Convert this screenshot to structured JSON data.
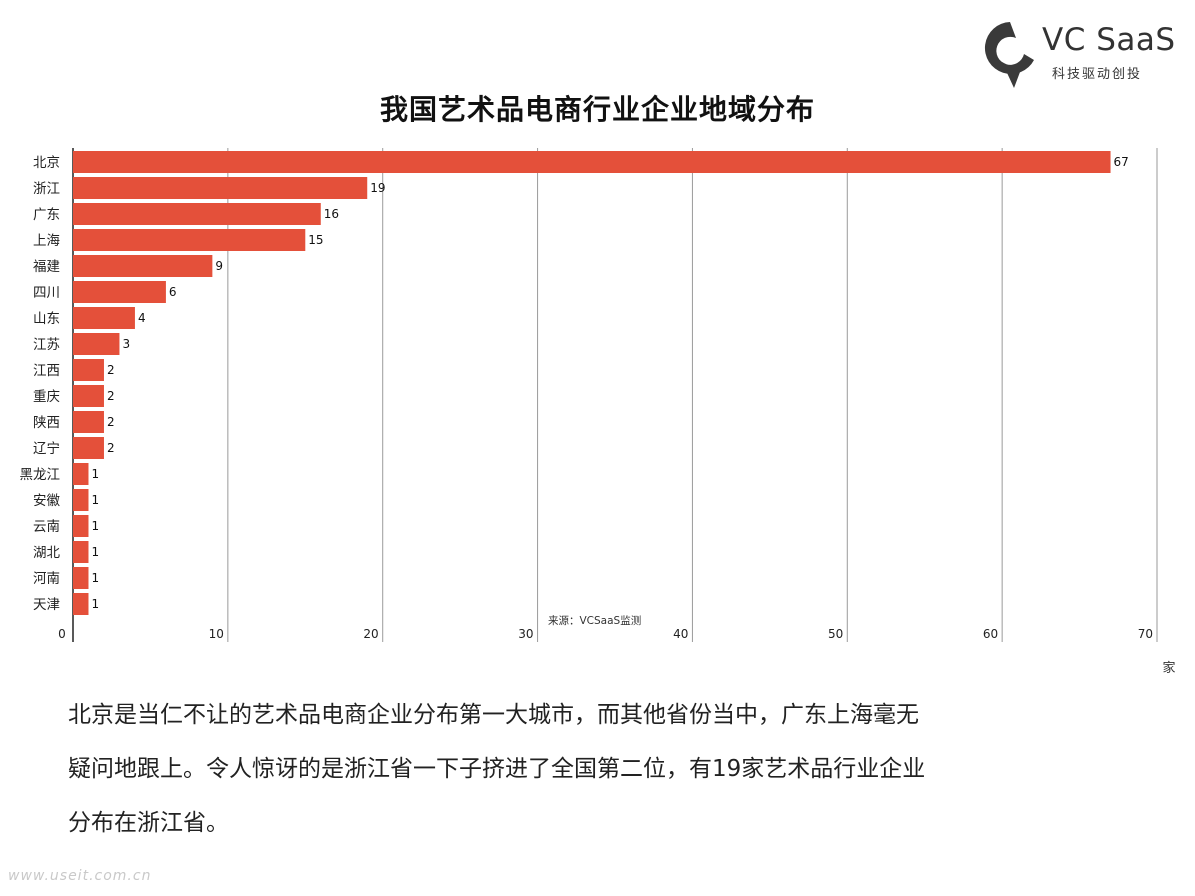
{
  "brand": {
    "name": "VC SaaS",
    "tagline": "科技驱动创投"
  },
  "chart_data": {
    "type": "bar",
    "orientation": "horizontal",
    "title": "我国艺术品电商行业企业地域分布",
    "categories": [
      "北京",
      "浙江",
      "广东",
      "上海",
      "福建",
      "四川",
      "山东",
      "江苏",
      "江西",
      "重庆",
      "陕西",
      "辽宁",
      "黑龙江",
      "安徽",
      "云南",
      "湖北",
      "河南",
      "天津"
    ],
    "values": [
      67,
      19,
      16,
      15,
      9,
      6,
      4,
      3,
      2,
      2,
      2,
      2,
      1,
      1,
      1,
      1,
      1,
      1
    ],
    "xlim": [
      0,
      70
    ],
    "xticks": [
      0,
      10,
      20,
      30,
      40,
      50,
      60,
      70
    ],
    "xlabel": "家",
    "ylabel": "",
    "grid": "vertical",
    "source_note": "来源：VCSaaS监测",
    "colors": {
      "bar": "#e4503a",
      "grid": "#9a9a9a",
      "axis": "#222222"
    }
  },
  "paragraph": [
    "北京是当仁不让的艺术品电商企业分布第一大城市，而其他省份当中，广东上海毫无",
    "疑问地跟上。令人惊讶的是浙江省一下子挤进了全国第二位，有19家艺术品行业企业",
    "分布在浙江省。"
  ],
  "watermark": "www.useit.com.cn"
}
